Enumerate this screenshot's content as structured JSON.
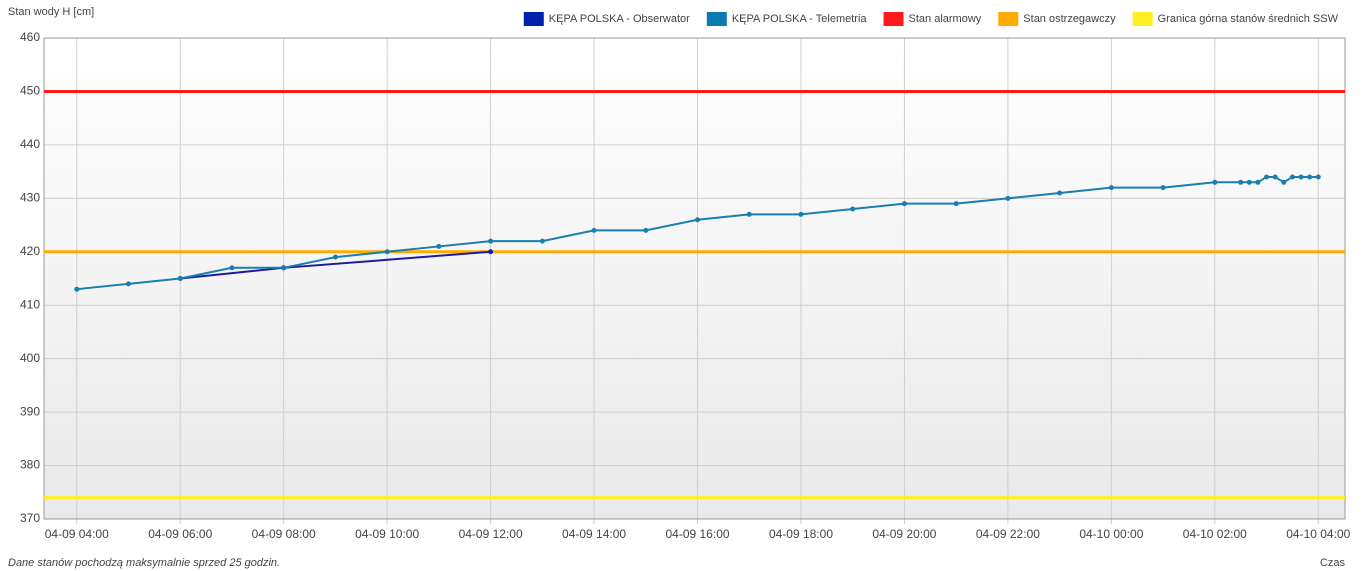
{
  "chart_data": {
    "type": "line",
    "ylabel": "Stan wody H [cm]",
    "xlabel": "Czas",
    "footnote": "Dane stanów pochodzą maksymalnie sprzed 25 godzin.",
    "xlim": [
      "04-09 03:22",
      "04-10 04:31"
    ],
    "xticks": [
      "04-09 04:00",
      "04-09 06:00",
      "04-09 08:00",
      "04-09 10:00",
      "04-09 12:00",
      "04-09 14:00",
      "04-09 16:00",
      "04-09 18:00",
      "04-09 20:00",
      "04-09 22:00",
      "04-10 00:00",
      "04-10 02:00",
      "04-10 04:00"
    ],
    "ylim": [
      370,
      460
    ],
    "yticks": [
      370,
      380,
      390,
      400,
      410,
      420,
      430,
      440,
      450,
      460
    ],
    "grid": true,
    "series": [
      {
        "name": "KĘPA POLSKA - Obserwator",
        "color": "#1c1c9c",
        "legend_color": "#0022aa",
        "x": [
          "04-09 06:00",
          "04-09 08:00",
          "04-09 12:00"
        ],
        "values": [
          415,
          417,
          420
        ]
      },
      {
        "name": "KĘPA POLSKA - Telemetria",
        "color": "#1a7fae",
        "legend_color": "#0a7bb0",
        "x": [
          "04-09 04:00",
          "04-09 05:00",
          "04-09 06:00",
          "04-09 07:00",
          "04-09 08:00",
          "04-09 09:00",
          "04-09 10:00",
          "04-09 11:00",
          "04-09 12:00",
          "04-09 13:00",
          "04-09 14:00",
          "04-09 15:00",
          "04-09 16:00",
          "04-09 17:00",
          "04-09 18:00",
          "04-09 19:00",
          "04-09 20:00",
          "04-09 21:00",
          "04-09 22:00",
          "04-09 23:00",
          "04-10 00:00",
          "04-10 01:00",
          "04-10 02:00",
          "04-10 02:30",
          "04-10 02:40",
          "04-10 02:50",
          "04-10 03:00",
          "04-10 03:10",
          "04-10 03:20",
          "04-10 03:30",
          "04-10 03:40",
          "04-10 03:50",
          "04-10 04:00"
        ],
        "values": [
          413,
          414,
          415,
          417,
          417,
          419,
          420,
          421,
          422,
          422,
          424,
          424,
          426,
          427,
          427,
          428,
          429,
          429,
          430,
          431,
          432,
          432,
          433,
          433,
          433,
          433,
          434,
          434,
          433,
          434,
          434,
          434,
          434
        ]
      }
    ],
    "thresholds": [
      {
        "name": "Stan alarmowy",
        "color": "#ff1a1a",
        "value": 450
      },
      {
        "name": "Stan ostrzegawczy",
        "color": "#ffaa00",
        "value": 420
      },
      {
        "name": "Granica górna stanów średnich SSW",
        "color": "#ffee22",
        "value": 374
      }
    ]
  }
}
